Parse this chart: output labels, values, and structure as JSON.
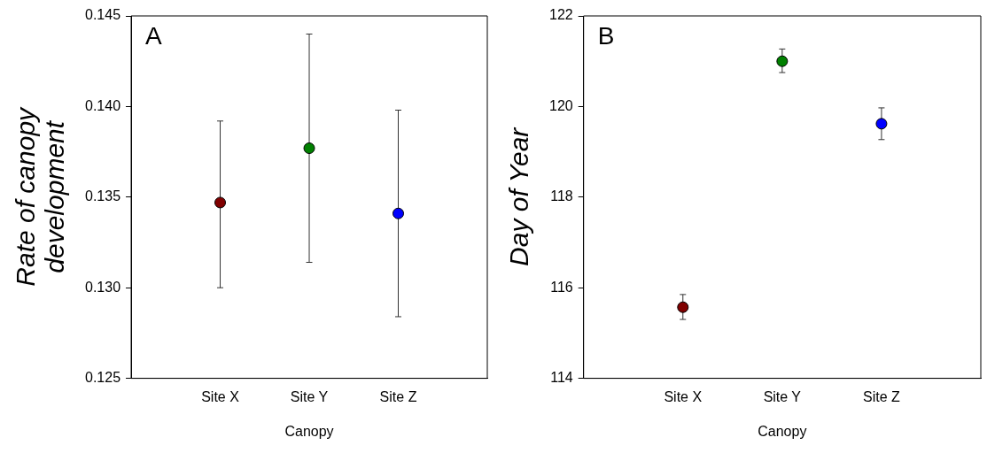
{
  "chart_data": [
    {
      "type": "scatter",
      "categories": [
        "Site X",
        "Site Y",
        "Site Z"
      ],
      "xlabel": "Canopy",
      "ylabel": "Rate of canopy\ndevelopment",
      "annotations": [
        "A"
      ],
      "ylim": [
        0.125,
        0.145
      ],
      "yticks": [
        0.125,
        {
          "value": 0.13,
          "label": "0.130"
        },
        0.135,
        {
          "value": 0.14,
          "label": "0.140"
        },
        0.145
      ],
      "grid": false,
      "legend": false,
      "marker": "circle",
      "values": [
        0.1347,
        0.1377,
        0.1341
      ],
      "colors": [
        "#800000",
        "#008000",
        "#0000ff"
      ],
      "errors": [
        [
          0.13,
          0.1392
        ],
        [
          0.1314,
          0.144
        ],
        [
          0.1284,
          0.1398
        ]
      ]
    },
    {
      "type": "scatter",
      "categories": [
        "Site X",
        "Site Y",
        "Site Z"
      ],
      "xlabel": "Canopy",
      "ylabel": "Day of Year",
      "annotations": [
        "B"
      ],
      "ylim": [
        114,
        122
      ],
      "yticks": [
        114,
        116,
        118,
        120,
        122
      ],
      "grid": false,
      "legend": false,
      "marker": "circle",
      "values": [
        115.57,
        121.0,
        119.62
      ],
      "colors": [
        "#800000",
        "#008000",
        "#0000ff"
      ],
      "errors": [
        [
          115.3,
          115.85
        ],
        [
          120.75,
          121.27
        ],
        [
          119.27,
          119.97
        ]
      ]
    }
  ]
}
